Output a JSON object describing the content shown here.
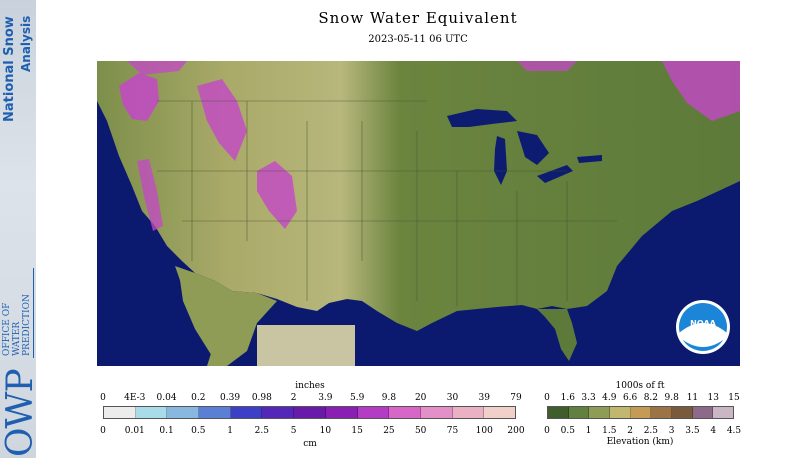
{
  "header": {
    "title": "Snow Water Equivalent",
    "timestamp": "2023-05-11 06 UTC"
  },
  "sidebar": {
    "product_line1": "National Snow",
    "product_line2": "Analysis",
    "org_logo": "OWP",
    "org_line1": "OFFICE OF",
    "org_line2": "WATER",
    "org_line3": "PREDICTION"
  },
  "map": {
    "logo_text": "NOAA",
    "colors": {
      "ocean": "#0b1a6e",
      "lake": "#0d1c70",
      "lowland": "#5d7a3a",
      "plains": "#b8b77c",
      "snow": "#c447c8",
      "mexico_mask": "#c9c4a2"
    }
  },
  "legends": {
    "swe": {
      "top_unit": "inches",
      "top_ticks": [
        "0",
        "4E-3",
        "0.04",
        "0.2",
        "0.39",
        "0.98",
        "2",
        "3.9",
        "5.9",
        "9.8",
        "20",
        "30",
        "39",
        "79"
      ],
      "bottom_ticks": [
        "0",
        "0.01",
        "0.1",
        "0.5",
        "1",
        "2.5",
        "5",
        "10",
        "15",
        "25",
        "50",
        "75",
        "100",
        "200"
      ],
      "bottom_unit": "cm",
      "colors": [
        "#ececec",
        "#a8dce8",
        "#88b8e0",
        "#5b7fd4",
        "#3d3fc6",
        "#5527b8",
        "#6a1aa8",
        "#8a1fb4",
        "#b43cc4",
        "#d866c8",
        "#e490c8",
        "#eab0c4",
        "#f0d0c8"
      ]
    },
    "elevation": {
      "top_unit": "1000s of ft",
      "top_ticks": [
        "0",
        "1.6",
        "3.3",
        "4.9",
        "6.6",
        "8.2",
        "9.8",
        "11",
        "13",
        "15"
      ],
      "bottom_ticks": [
        "0",
        "0.5",
        "1",
        "1.5",
        "2",
        "2.5",
        "3",
        "3.5",
        "4",
        "4.5"
      ],
      "bottom_unit": "Elevation (km)",
      "colors": [
        "#3f5e2c",
        "#62803f",
        "#8e9c55",
        "#c2b76e",
        "#c49a55",
        "#9c7344",
        "#7a5a3c",
        "#8d6a8a",
        "#c9b7c6"
      ]
    }
  }
}
